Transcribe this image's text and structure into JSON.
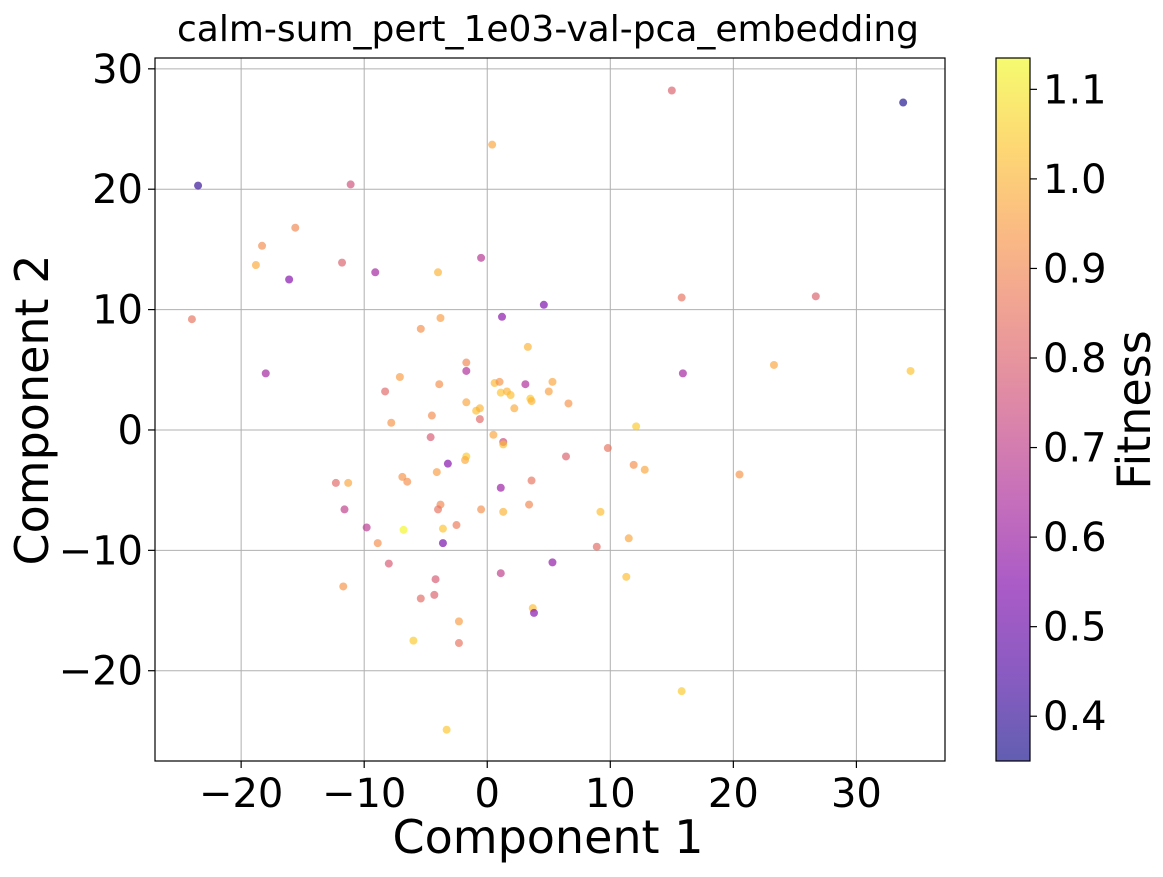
{
  "chart_data": {
    "type": "scatter",
    "title": "calm-sum_pert_1e03-val-pca_embedding",
    "xlabel": "Component 1",
    "ylabel": "Component 2",
    "xlim": [
      -27,
      37.2
    ],
    "ylim": [
      -27.5,
      30.9
    ],
    "xticks": [
      -20,
      -10,
      0,
      10,
      20,
      30
    ],
    "yticks": [
      -20,
      -10,
      0,
      10,
      20,
      30
    ],
    "x_tick_labels": [
      "−20",
      "−10",
      "0",
      "10",
      "20",
      "30"
    ],
    "y_tick_labels": [
      "−20",
      "−10",
      "0",
      "10",
      "20",
      "30"
    ],
    "grid": true,
    "colorbar": {
      "label": "Fitness",
      "colormap": "plasma",
      "range": [
        0.35,
        1.135
      ],
      "ticks": [
        0.4,
        0.5,
        0.6,
        0.7,
        0.8,
        0.9,
        1.0,
        1.1
      ],
      "tick_labels": [
        "0.4",
        "0.5",
        "0.6",
        "0.7",
        "0.8",
        "0.9",
        "1.0",
        "1.1"
      ]
    },
    "marker_alpha": 0.65,
    "points": [
      {
        "x": 33.8,
        "y": 27.2,
        "fitness": 0.36
      },
      {
        "x": 15.0,
        "y": 28.2,
        "fitness": 0.8
      },
      {
        "x": 0.4,
        "y": 23.7,
        "fitness": 0.97
      },
      {
        "x": -23.5,
        "y": 20.3,
        "fitness": 0.4
      },
      {
        "x": -11.1,
        "y": 20.4,
        "fitness": 0.75
      },
      {
        "x": -15.6,
        "y": 16.8,
        "fitness": 0.9
      },
      {
        "x": -18.3,
        "y": 15.3,
        "fitness": 0.91
      },
      {
        "x": -18.8,
        "y": 13.7,
        "fitness": 0.98
      },
      {
        "x": -11.8,
        "y": 13.9,
        "fitness": 0.8
      },
      {
        "x": -16.1,
        "y": 12.5,
        "fitness": 0.55
      },
      {
        "x": -9.1,
        "y": 13.1,
        "fitness": 0.62
      },
      {
        "x": -4.0,
        "y": 13.1,
        "fitness": 1.0
      },
      {
        "x": -0.5,
        "y": 14.3,
        "fitness": 0.67
      },
      {
        "x": -24.0,
        "y": 9.2,
        "fitness": 0.85
      },
      {
        "x": 15.8,
        "y": 11.0,
        "fitness": 0.85
      },
      {
        "x": 26.7,
        "y": 11.1,
        "fitness": 0.8
      },
      {
        "x": 4.6,
        "y": 10.4,
        "fitness": 0.53
      },
      {
        "x": 1.2,
        "y": 9.4,
        "fitness": 0.56
      },
      {
        "x": -3.8,
        "y": 9.3,
        "fitness": 0.95
      },
      {
        "x": -5.4,
        "y": 8.4,
        "fitness": 0.92
      },
      {
        "x": -18.0,
        "y": 4.7,
        "fitness": 0.62
      },
      {
        "x": 15.9,
        "y": 4.7,
        "fitness": 0.62
      },
      {
        "x": 23.3,
        "y": 5.4,
        "fitness": 0.97
      },
      {
        "x": 34.4,
        "y": 4.9,
        "fitness": 1.03
      },
      {
        "x": 3.3,
        "y": 6.9,
        "fitness": 1.0
      },
      {
        "x": -1.7,
        "y": 5.6,
        "fitness": 0.9
      },
      {
        "x": -1.7,
        "y": 4.9,
        "fitness": 0.65
      },
      {
        "x": -7.1,
        "y": 4.4,
        "fitness": 0.95
      },
      {
        "x": -3.9,
        "y": 3.8,
        "fitness": 0.92
      },
      {
        "x": -8.3,
        "y": 3.2,
        "fitness": 0.82
      },
      {
        "x": 0.6,
        "y": 3.9,
        "fitness": 1.01
      },
      {
        "x": 1.0,
        "y": 4.0,
        "fitness": 0.93
      },
      {
        "x": 1.1,
        "y": 3.1,
        "fitness": 1.03
      },
      {
        "x": 1.6,
        "y": 3.2,
        "fitness": 1.0
      },
      {
        "x": 1.9,
        "y": 2.9,
        "fitness": 1.02
      },
      {
        "x": 3.1,
        "y": 3.8,
        "fitness": 0.65
      },
      {
        "x": 3.5,
        "y": 2.6,
        "fitness": 1.04
      },
      {
        "x": 3.6,
        "y": 2.4,
        "fitness": 1.0
      },
      {
        "x": 5.3,
        "y": 4.0,
        "fitness": 0.97
      },
      {
        "x": 5.0,
        "y": 3.2,
        "fitness": 0.96
      },
      {
        "x": 6.6,
        "y": 2.2,
        "fitness": 0.93
      },
      {
        "x": 2.2,
        "y": 1.8,
        "fitness": 0.98
      },
      {
        "x": -1.7,
        "y": 2.3,
        "fitness": 0.97
      },
      {
        "x": -0.9,
        "y": 1.6,
        "fitness": 1.02
      },
      {
        "x": -0.6,
        "y": 1.8,
        "fitness": 1.0
      },
      {
        "x": -4.5,
        "y": 1.2,
        "fitness": 0.91
      },
      {
        "x": -0.6,
        "y": 0.9,
        "fitness": 0.82
      },
      {
        "x": -7.8,
        "y": 0.6,
        "fitness": 0.93
      },
      {
        "x": 12.1,
        "y": 0.3,
        "fitness": 1.05
      },
      {
        "x": -4.6,
        "y": -0.6,
        "fitness": 0.78
      },
      {
        "x": 0.5,
        "y": -0.4,
        "fitness": 0.97
      },
      {
        "x": 1.3,
        "y": -1.0,
        "fitness": 0.73
      },
      {
        "x": 1.3,
        "y": -1.2,
        "fitness": 1.02
      },
      {
        "x": 9.8,
        "y": -1.5,
        "fitness": 0.85
      },
      {
        "x": 6.4,
        "y": -2.2,
        "fitness": 0.8
      },
      {
        "x": -1.7,
        "y": -2.2,
        "fitness": 1.05
      },
      {
        "x": -1.8,
        "y": -2.5,
        "fitness": 0.98
      },
      {
        "x": -3.2,
        "y": -2.8,
        "fitness": 0.55
      },
      {
        "x": 11.9,
        "y": -2.9,
        "fitness": 0.92
      },
      {
        "x": 12.8,
        "y": -3.3,
        "fitness": 0.97
      },
      {
        "x": -4.1,
        "y": -3.5,
        "fitness": 0.95
      },
      {
        "x": 20.5,
        "y": -3.7,
        "fitness": 0.93
      },
      {
        "x": -12.3,
        "y": -4.4,
        "fitness": 0.82
      },
      {
        "x": -11.3,
        "y": -4.4,
        "fitness": 0.97
      },
      {
        "x": -6.9,
        "y": -3.9,
        "fitness": 0.93
      },
      {
        "x": -6.5,
        "y": -4.3,
        "fitness": 0.92
      },
      {
        "x": 3.6,
        "y": -4.2,
        "fitness": 0.85
      },
      {
        "x": 1.1,
        "y": -4.8,
        "fitness": 0.6
      },
      {
        "x": -3.8,
        "y": -6.2,
        "fitness": 0.9
      },
      {
        "x": -4.0,
        "y": -6.6,
        "fitness": 0.85
      },
      {
        "x": -0.5,
        "y": -6.6,
        "fitness": 0.92
      },
      {
        "x": 1.3,
        "y": -6.8,
        "fitness": 1.0
      },
      {
        "x": 3.4,
        "y": -6.2,
        "fitness": 0.9
      },
      {
        "x": 9.2,
        "y": -6.8,
        "fitness": 1.02
      },
      {
        "x": -11.6,
        "y": -6.6,
        "fitness": 0.7
      },
      {
        "x": -9.8,
        "y": -8.1,
        "fitness": 0.68
      },
      {
        "x": -6.8,
        "y": -8.3,
        "fitness": 1.13
      },
      {
        "x": -3.6,
        "y": -8.2,
        "fitness": 1.03
      },
      {
        "x": -2.5,
        "y": -7.9,
        "fitness": 0.87
      },
      {
        "x": -3.6,
        "y": -9.4,
        "fitness": 0.52
      },
      {
        "x": -8.9,
        "y": -9.4,
        "fitness": 0.92
      },
      {
        "x": 11.5,
        "y": -9.0,
        "fitness": 0.97
      },
      {
        "x": 8.9,
        "y": -9.7,
        "fitness": 0.83
      },
      {
        "x": 5.3,
        "y": -11.0,
        "fitness": 0.58
      },
      {
        "x": -8.0,
        "y": -11.1,
        "fitness": 0.78
      },
      {
        "x": 1.1,
        "y": -11.9,
        "fitness": 0.7
      },
      {
        "x": -4.2,
        "y": -12.4,
        "fitness": 0.78
      },
      {
        "x": 11.3,
        "y": -12.2,
        "fitness": 1.02
      },
      {
        "x": -11.7,
        "y": -13.0,
        "fitness": 0.93
      },
      {
        "x": -4.3,
        "y": -13.7,
        "fitness": 0.8
      },
      {
        "x": -5.4,
        "y": -14.0,
        "fitness": 0.83
      },
      {
        "x": 3.7,
        "y": -14.8,
        "fitness": 1.02
      },
      {
        "x": 3.8,
        "y": -15.2,
        "fitness": 0.55
      },
      {
        "x": -2.3,
        "y": -15.9,
        "fitness": 0.95
      },
      {
        "x": -6.0,
        "y": -17.5,
        "fitness": 1.05
      },
      {
        "x": -2.3,
        "y": -17.7,
        "fitness": 0.85
      },
      {
        "x": 15.8,
        "y": -21.7,
        "fitness": 1.05
      },
      {
        "x": -3.3,
        "y": -24.9,
        "fitness": 1.04
      }
    ]
  }
}
